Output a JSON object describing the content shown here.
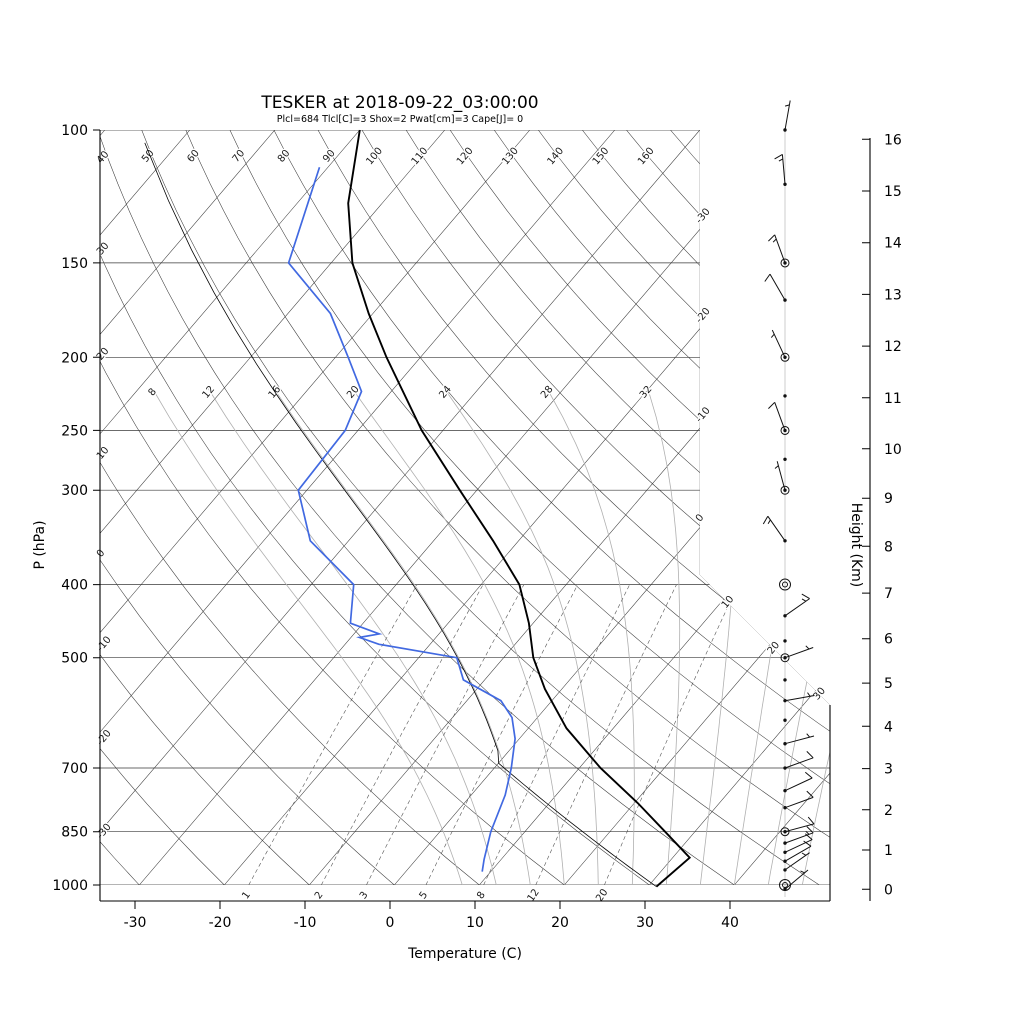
{
  "header": {
    "title": "TESKER at 2018-09-22_03:00:00",
    "params": "Plcl=684 Tlcl[C]=3 Shox=2 Pwat[cm]=3 Cape[J]= 0"
  },
  "colors": {
    "dewpoint": "#4169e1",
    "temperature": "#000000",
    "parcel": "#000000",
    "params_text": "#b5401a",
    "grid": "#3a3a3a",
    "moist_adiabat": "#b0b0b0",
    "mixing_ratio": "#555555"
  },
  "chart_data": {
    "type": "skewt",
    "station": "TESKER",
    "datetime": "2018-09-22_03:00:00",
    "parameters": {
      "Plcl": 684,
      "Tlcl_C": 3,
      "Shox": 2,
      "Pwat_cm": 3,
      "Cape_J": 0
    },
    "axes": {
      "xlabel": "Temperature (C)",
      "ylabel_left": "P (hPa)",
      "ylabel_right": "Height (Km)",
      "pressure_ticks_hPa": [
        100,
        150,
        200,
        250,
        300,
        400,
        500,
        700,
        850,
        1000
      ],
      "temperature_ticks_C": [
        -30,
        -20,
        -10,
        0,
        10,
        20,
        30,
        40
      ],
      "height_ticks_km": [
        0,
        1,
        2,
        3,
        4,
        5,
        6,
        7,
        8,
        9,
        10,
        11,
        12,
        13,
        14,
        15,
        16
      ],
      "pressure_range_hPa": [
        100,
        1050
      ]
    },
    "background": {
      "isotherms_C": {
        "start": -110,
        "end": 40,
        "step": 10
      },
      "dry_adiabats_C": {
        "start": -30,
        "end": 170,
        "step": 10
      },
      "dry_adiabat_top_labels": [
        50,
        60,
        70,
        80,
        90,
        100,
        110,
        120,
        130,
        140,
        150,
        160
      ],
      "dry_adiabat_left_labels": [
        40,
        30,
        20,
        10,
        0,
        -10,
        -20,
        -30
      ],
      "isotherm_right_edge_labels": [
        -30,
        -20,
        -10,
        0
      ],
      "isotherm_diagonal_labels": [
        10,
        20,
        30
      ],
      "moist_adiabats_C": [
        8,
        12,
        16,
        20,
        24,
        28,
        32,
        36,
        40,
        44,
        48
      ],
      "moist_adiabat_labels": [
        8,
        12,
        16,
        20,
        24,
        28,
        32
      ],
      "mixing_ratio_g_kg": [
        1,
        2,
        3,
        5,
        8,
        12,
        20
      ]
    },
    "temperature_profile": [
      [
        1005,
        31
      ],
      [
        920,
        32
      ],
      [
        850,
        26.5
      ],
      [
        780,
        20.5
      ],
      [
        700,
        12.5
      ],
      [
        620,
        4.5
      ],
      [
        550,
        -2
      ],
      [
        500,
        -6.5
      ],
      [
        450,
        -10.5
      ],
      [
        400,
        -15.5
      ],
      [
        350,
        -23
      ],
      [
        300,
        -32
      ],
      [
        250,
        -42.5
      ],
      [
        200,
        -54
      ],
      [
        175,
        -60.5
      ],
      [
        150,
        -67.5
      ],
      [
        125,
        -74
      ],
      [
        100,
        -80
      ]
    ],
    "dewpoint_profile": [
      [
        960,
        9
      ],
      [
        925,
        8
      ],
      [
        850,
        6
      ],
      [
        760,
        4
      ],
      [
        700,
        2
      ],
      [
        640,
        -0.5
      ],
      [
        600,
        -3
      ],
      [
        570,
        -6
      ],
      [
        535,
        -12.5
      ],
      [
        500,
        -15.5
      ],
      [
        480,
        -26
      ],
      [
        470,
        -29
      ],
      [
        465,
        -27
      ],
      [
        450,
        -31.5
      ],
      [
        400,
        -35
      ],
      [
        350,
        -44.5
      ],
      [
        300,
        -51
      ],
      [
        250,
        -51.5
      ],
      [
        222,
        -53.5
      ],
      [
        200,
        -58.5
      ],
      [
        175,
        -65
      ],
      [
        150,
        -75
      ],
      [
        112,
        -81
      ]
    ],
    "parcel": {
      "surface_p": 1005,
      "surface_T": 31,
      "lcl_p": 684
    },
    "wind_barbs": [
      {
        "p": 100,
        "kt": 5,
        "dir": 10
      },
      {
        "p": 118,
        "kt": 15,
        "dir": 355
      },
      {
        "p": 150,
        "kt": 15,
        "dir": 340,
        "marker": "circle"
      },
      {
        "p": 168,
        "kt": 10,
        "dir": 330
      },
      {
        "p": 200,
        "kt": 5,
        "dir": 335,
        "marker": "circle"
      },
      {
        "p": 225,
        "kt": null
      },
      {
        "p": 250,
        "kt": 10,
        "dir": 340,
        "marker": "circle"
      },
      {
        "p": 273,
        "kt": null
      },
      {
        "p": 300,
        "kt": 5,
        "dir": 345,
        "marker": "circle"
      },
      {
        "p": 350,
        "kt": 15,
        "dir": 325
      },
      {
        "p": 400,
        "kt": 0,
        "marker": "calm"
      },
      {
        "p": 440,
        "kt": 15,
        "dir": 55
      },
      {
        "p": 475,
        "kt": null
      },
      {
        "p": 500,
        "kt": 5,
        "dir": 70,
        "marker": "circle"
      },
      {
        "p": 535,
        "kt": null
      },
      {
        "p": 570,
        "kt": 5,
        "dir": 80
      },
      {
        "p": 605,
        "kt": null
      },
      {
        "p": 650,
        "kt": 5,
        "dir": 75
      },
      {
        "p": 700,
        "kt": 10,
        "dir": 70
      },
      {
        "p": 750,
        "kt": 10,
        "dir": 65
      },
      {
        "p": 790,
        "kt": 10,
        "dir": 70
      },
      {
        "p": 850,
        "kt": 10,
        "dir": 75,
        "marker": "circle"
      },
      {
        "p": 880,
        "kt": 15,
        "dir": 70
      },
      {
        "p": 905,
        "kt": 10,
        "dir": 65
      },
      {
        "p": 930,
        "kt": 10,
        "dir": 60
      },
      {
        "p": 955,
        "kt": 5,
        "dir": 55
      },
      {
        "p": 1000,
        "kt": 0,
        "marker": "calm"
      },
      {
        "p": 1013,
        "kt": 5,
        "dir": 50
      }
    ]
  }
}
